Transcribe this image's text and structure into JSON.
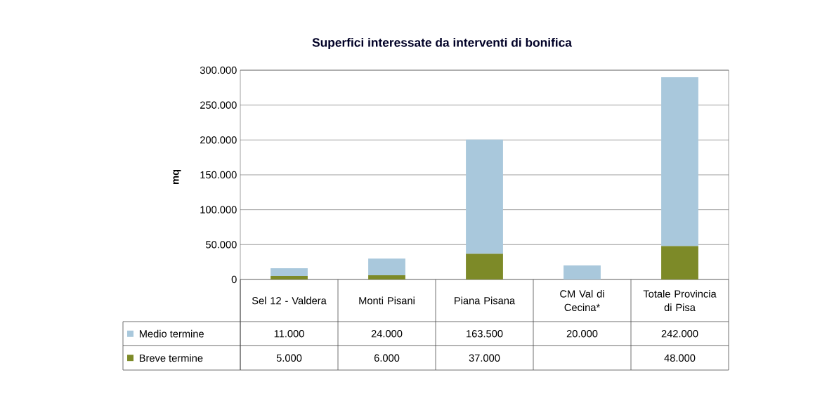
{
  "chart_data": {
    "type": "bar",
    "stacked": true,
    "title": "Superfici interessate da interventi di bonifica",
    "ylabel": "mq",
    "categories": [
      "Sel 12 - Valdera",
      "Monti Pisani",
      "Piana Pisana",
      "CM Val di Cecina*",
      "Totale Provincia di Pisa"
    ],
    "series": [
      {
        "name": "Breve termine",
        "color": "#7d8a28",
        "values": [
          5000,
          6000,
          37000,
          null,
          48000
        ],
        "value_labels": [
          "5.000",
          "6.000",
          "37.000",
          null,
          "48.000"
        ]
      },
      {
        "name": "Medio termine",
        "color": "#a9c8dc",
        "values": [
          11000,
          24000,
          163500,
          20000,
          242000
        ],
        "value_labels": [
          "11.000",
          "24.000",
          "163.500",
          "20.000",
          "242.000"
        ]
      }
    ],
    "ylim": [
      0,
      300000
    ],
    "yticks": [
      0,
      {
        "value": 50000,
        "label": "50.000"
      },
      {
        "value": 100000,
        "label": "100.000"
      },
      {
        "value": 150000,
        "label": "150.000"
      },
      {
        "value": 200000,
        "label": "200.000"
      },
      {
        "value": 250000,
        "label": "250.000"
      },
      {
        "value": 300000,
        "label": "300.000"
      }
    ],
    "grid": "y",
    "legend": "bottom left"
  }
}
